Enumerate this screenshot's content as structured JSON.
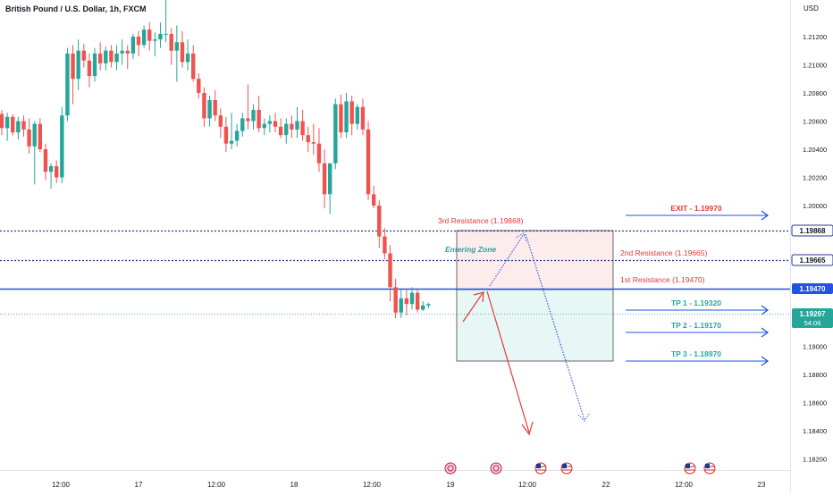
{
  "header": {
    "symbol_title": "British Pound / U.S. Dollar, 1h, FXCM",
    "currency": "USD"
  },
  "colors": {
    "bull": "#26a69a",
    "bear": "#ef5350",
    "blue": "#1e53e5",
    "navy": "#263a8c",
    "price_line": "#26a69a",
    "arrow_red": "#e53935",
    "arrow_blue": "#3b5bdb",
    "zone_red": "#fdecec",
    "zone_green": "#e6f7f6"
  },
  "chart_data": {
    "type": "candlestick",
    "title": "British Pound / U.S. Dollar, 1h, FXCM",
    "ylim": [
      1.1815,
      1.2155
    ],
    "y_ticks": [
      "1.21200",
      "1.21000",
      "1.20800",
      "1.20600",
      "1.20400",
      "1.20200",
      "1.20000",
      "1.19800",
      "1.19600",
      "1.19400",
      "1.19200",
      "1.19000",
      "1.18800",
      "1.18600",
      "1.18400",
      "1.18200"
    ],
    "x_ticks": [
      "12:00",
      "17",
      "12:00",
      "18",
      "12:00",
      "19",
      "12:00",
      "22",
      "12:00",
      "23"
    ],
    "grid": false,
    "candles_ohlc": [
      [
        1.2065,
        1.2068,
        1.205,
        1.2055
      ],
      [
        1.2055,
        1.2066,
        1.2046,
        1.2063
      ],
      [
        1.2063,
        1.2065,
        1.205,
        1.2052
      ],
      [
        1.2052,
        1.2063,
        1.2047,
        1.206
      ],
      [
        1.206,
        1.2064,
        1.2049,
        1.2054
      ],
      [
        1.2054,
        1.2062,
        1.2037,
        1.2042
      ],
      [
        1.2042,
        1.206,
        1.2015,
        1.2058
      ],
      [
        1.2058,
        1.2062,
        1.2038,
        1.204
      ],
      [
        1.204,
        1.2044,
        1.2018,
        1.2024
      ],
      [
        1.2024,
        1.203,
        1.2012,
        1.2028
      ],
      [
        1.2028,
        1.2032,
        1.2016,
        1.202
      ],
      [
        1.202,
        1.207,
        1.2016,
        1.2064
      ],
      [
        1.2064,
        1.2112,
        1.206,
        1.2108
      ],
      [
        1.2108,
        1.2114,
        1.2072,
        1.209
      ],
      [
        1.209,
        1.2118,
        1.2082,
        1.211
      ],
      [
        1.211,
        1.2115,
        1.2098,
        1.2103
      ],
      [
        1.2103,
        1.2108,
        1.2084,
        1.2092
      ],
      [
        1.2092,
        1.2112,
        1.2088,
        1.2108
      ],
      [
        1.2108,
        1.2116,
        1.2096,
        1.2101
      ],
      [
        1.2101,
        1.2113,
        1.2096,
        1.211
      ],
      [
        1.211,
        1.2114,
        1.2098,
        1.2102
      ],
      [
        1.2102,
        1.2114,
        1.2096,
        1.2108
      ],
      [
        1.2108,
        1.2118,
        1.21,
        1.211
      ],
      [
        1.211,
        1.2114,
        1.2097,
        1.2108
      ],
      [
        1.2108,
        1.2122,
        1.2104,
        1.212
      ],
      [
        1.212,
        1.2124,
        1.2106,
        1.2114
      ],
      [
        1.2114,
        1.2128,
        1.2112,
        1.2125
      ],
      [
        1.2125,
        1.213,
        1.211,
        1.2117
      ],
      [
        1.2117,
        1.2123,
        1.2106,
        1.2118
      ],
      [
        1.2118,
        1.213,
        1.2112,
        1.2122
      ],
      [
        1.2122,
        1.2148,
        1.2116,
        1.2122
      ],
      [
        1.2122,
        1.2126,
        1.21,
        1.211
      ],
      [
        1.211,
        1.2128,
        1.2088,
        1.2116
      ],
      [
        1.2116,
        1.2124,
        1.2098,
        1.2102
      ],
      [
        1.2102,
        1.2118,
        1.2096,
        1.2108
      ],
      [
        1.2108,
        1.2114,
        1.2088,
        1.209
      ],
      [
        1.209,
        1.2094,
        1.2076,
        1.208
      ],
      [
        1.208,
        1.2084,
        1.2056,
        1.2062
      ],
      [
        1.2062,
        1.2078,
        1.2056,
        1.2075
      ],
      [
        1.2075,
        1.2082,
        1.206,
        1.2064
      ],
      [
        1.2064,
        1.2069,
        1.2048,
        1.2056
      ],
      [
        1.2056,
        1.2063,
        1.2038,
        1.2044
      ],
      [
        1.2044,
        1.2066,
        1.204,
        1.2046
      ],
      [
        1.2046,
        1.2058,
        1.2042,
        1.2053
      ],
      [
        1.2053,
        1.2066,
        1.2049,
        1.2062
      ],
      [
        1.2062,
        1.2086,
        1.2054,
        1.206
      ],
      [
        1.206,
        1.2072,
        1.2054,
        1.2068
      ],
      [
        1.2068,
        1.2078,
        1.2052,
        1.2055
      ],
      [
        1.2055,
        1.2062,
        1.205,
        1.2058
      ],
      [
        1.2058,
        1.2064,
        1.2052,
        1.206
      ],
      [
        1.206,
        1.2066,
        1.2052,
        1.2056
      ],
      [
        1.2056,
        1.2062,
        1.2048,
        1.205
      ],
      [
        1.205,
        1.2062,
        1.2044,
        1.2058
      ],
      [
        1.2058,
        1.2064,
        1.2048,
        1.2054
      ],
      [
        1.2054,
        1.207,
        1.2048,
        1.206
      ],
      [
        1.206,
        1.2068,
        1.2046,
        1.205
      ],
      [
        1.205,
        1.2056,
        1.2038,
        1.2045
      ],
      [
        1.2045,
        1.2058,
        1.2036,
        1.2044
      ],
      [
        1.2044,
        1.2055,
        1.2024,
        1.203
      ],
      [
        1.203,
        1.204,
        1.1998,
        1.2008
      ],
      [
        1.2008,
        1.2016,
        1.1994,
        1.203
      ],
      [
        1.203,
        1.2076,
        1.2026,
        1.2072
      ],
      [
        1.2072,
        1.2079,
        1.2048,
        1.2052
      ],
      [
        1.2052,
        1.208,
        1.2048,
        1.2074
      ],
      [
        1.2074,
        1.2078,
        1.205,
        1.2058
      ],
      [
        1.2058,
        1.2072,
        1.2054,
        1.207
      ],
      [
        1.207,
        1.2076,
        1.205,
        1.2054
      ],
      [
        1.2054,
        1.206,
        1.2004,
        1.2008
      ],
      [
        1.2008,
        1.2014,
        1.1998,
        1.2
      ],
      [
        1.2,
        1.2004,
        1.197,
        1.1978
      ],
      [
        1.1978,
        1.1984,
        1.1962,
        1.1966
      ],
      [
        1.1966,
        1.1972,
        1.1932,
        1.1942
      ],
      [
        1.1942,
        1.1948,
        1.192,
        1.1924
      ],
      [
        1.1924,
        1.194,
        1.192,
        1.1934
      ],
      [
        1.1934,
        1.194,
        1.1922,
        1.193
      ],
      [
        1.193,
        1.1942,
        1.1926,
        1.1938
      ],
      [
        1.1938,
        1.194,
        1.1924,
        1.1926
      ],
      [
        1.1926,
        1.1932,
        1.1925,
        1.1929
      ],
      [
        1.1929,
        1.1931,
        1.1927,
        1.193
      ]
    ],
    "annotations": {
      "levels": [
        {
          "label": "3rd Resistance (1.19868)",
          "price": 1.19868,
          "tag": "1.19868",
          "style": "dotted"
        },
        {
          "label": "2nd Resistance (1.19665)",
          "price": 1.19665,
          "tag": "1.19665",
          "style": "dotted"
        },
        {
          "label": "1st Resistance (1.19470)",
          "price": 1.1947,
          "tag": "1.19470",
          "style": "solid"
        }
      ],
      "current_price": {
        "price": 1.19297,
        "tag": "1.19297",
        "countdown": "54:06"
      },
      "entering_zone_label": "Entering Zone",
      "targets": [
        {
          "label": "EXIT - 1.19970",
          "price": 1.1997,
          "color": "red"
        },
        {
          "label": "TP 1 - 1.19320",
          "price": 1.1932,
          "color": "teal"
        },
        {
          "label": "TP 2 - 1.19170",
          "price": 1.1917,
          "color": "teal"
        },
        {
          "label": "TP 3 - 1.18970",
          "price": 1.1897,
          "color": "teal"
        }
      ],
      "zone_bottom_price": 1.1898,
      "event_flags": [
        "economic-event",
        "economic-event",
        "us-flag",
        "us-flag",
        "us-flag",
        "us-flag"
      ]
    }
  }
}
